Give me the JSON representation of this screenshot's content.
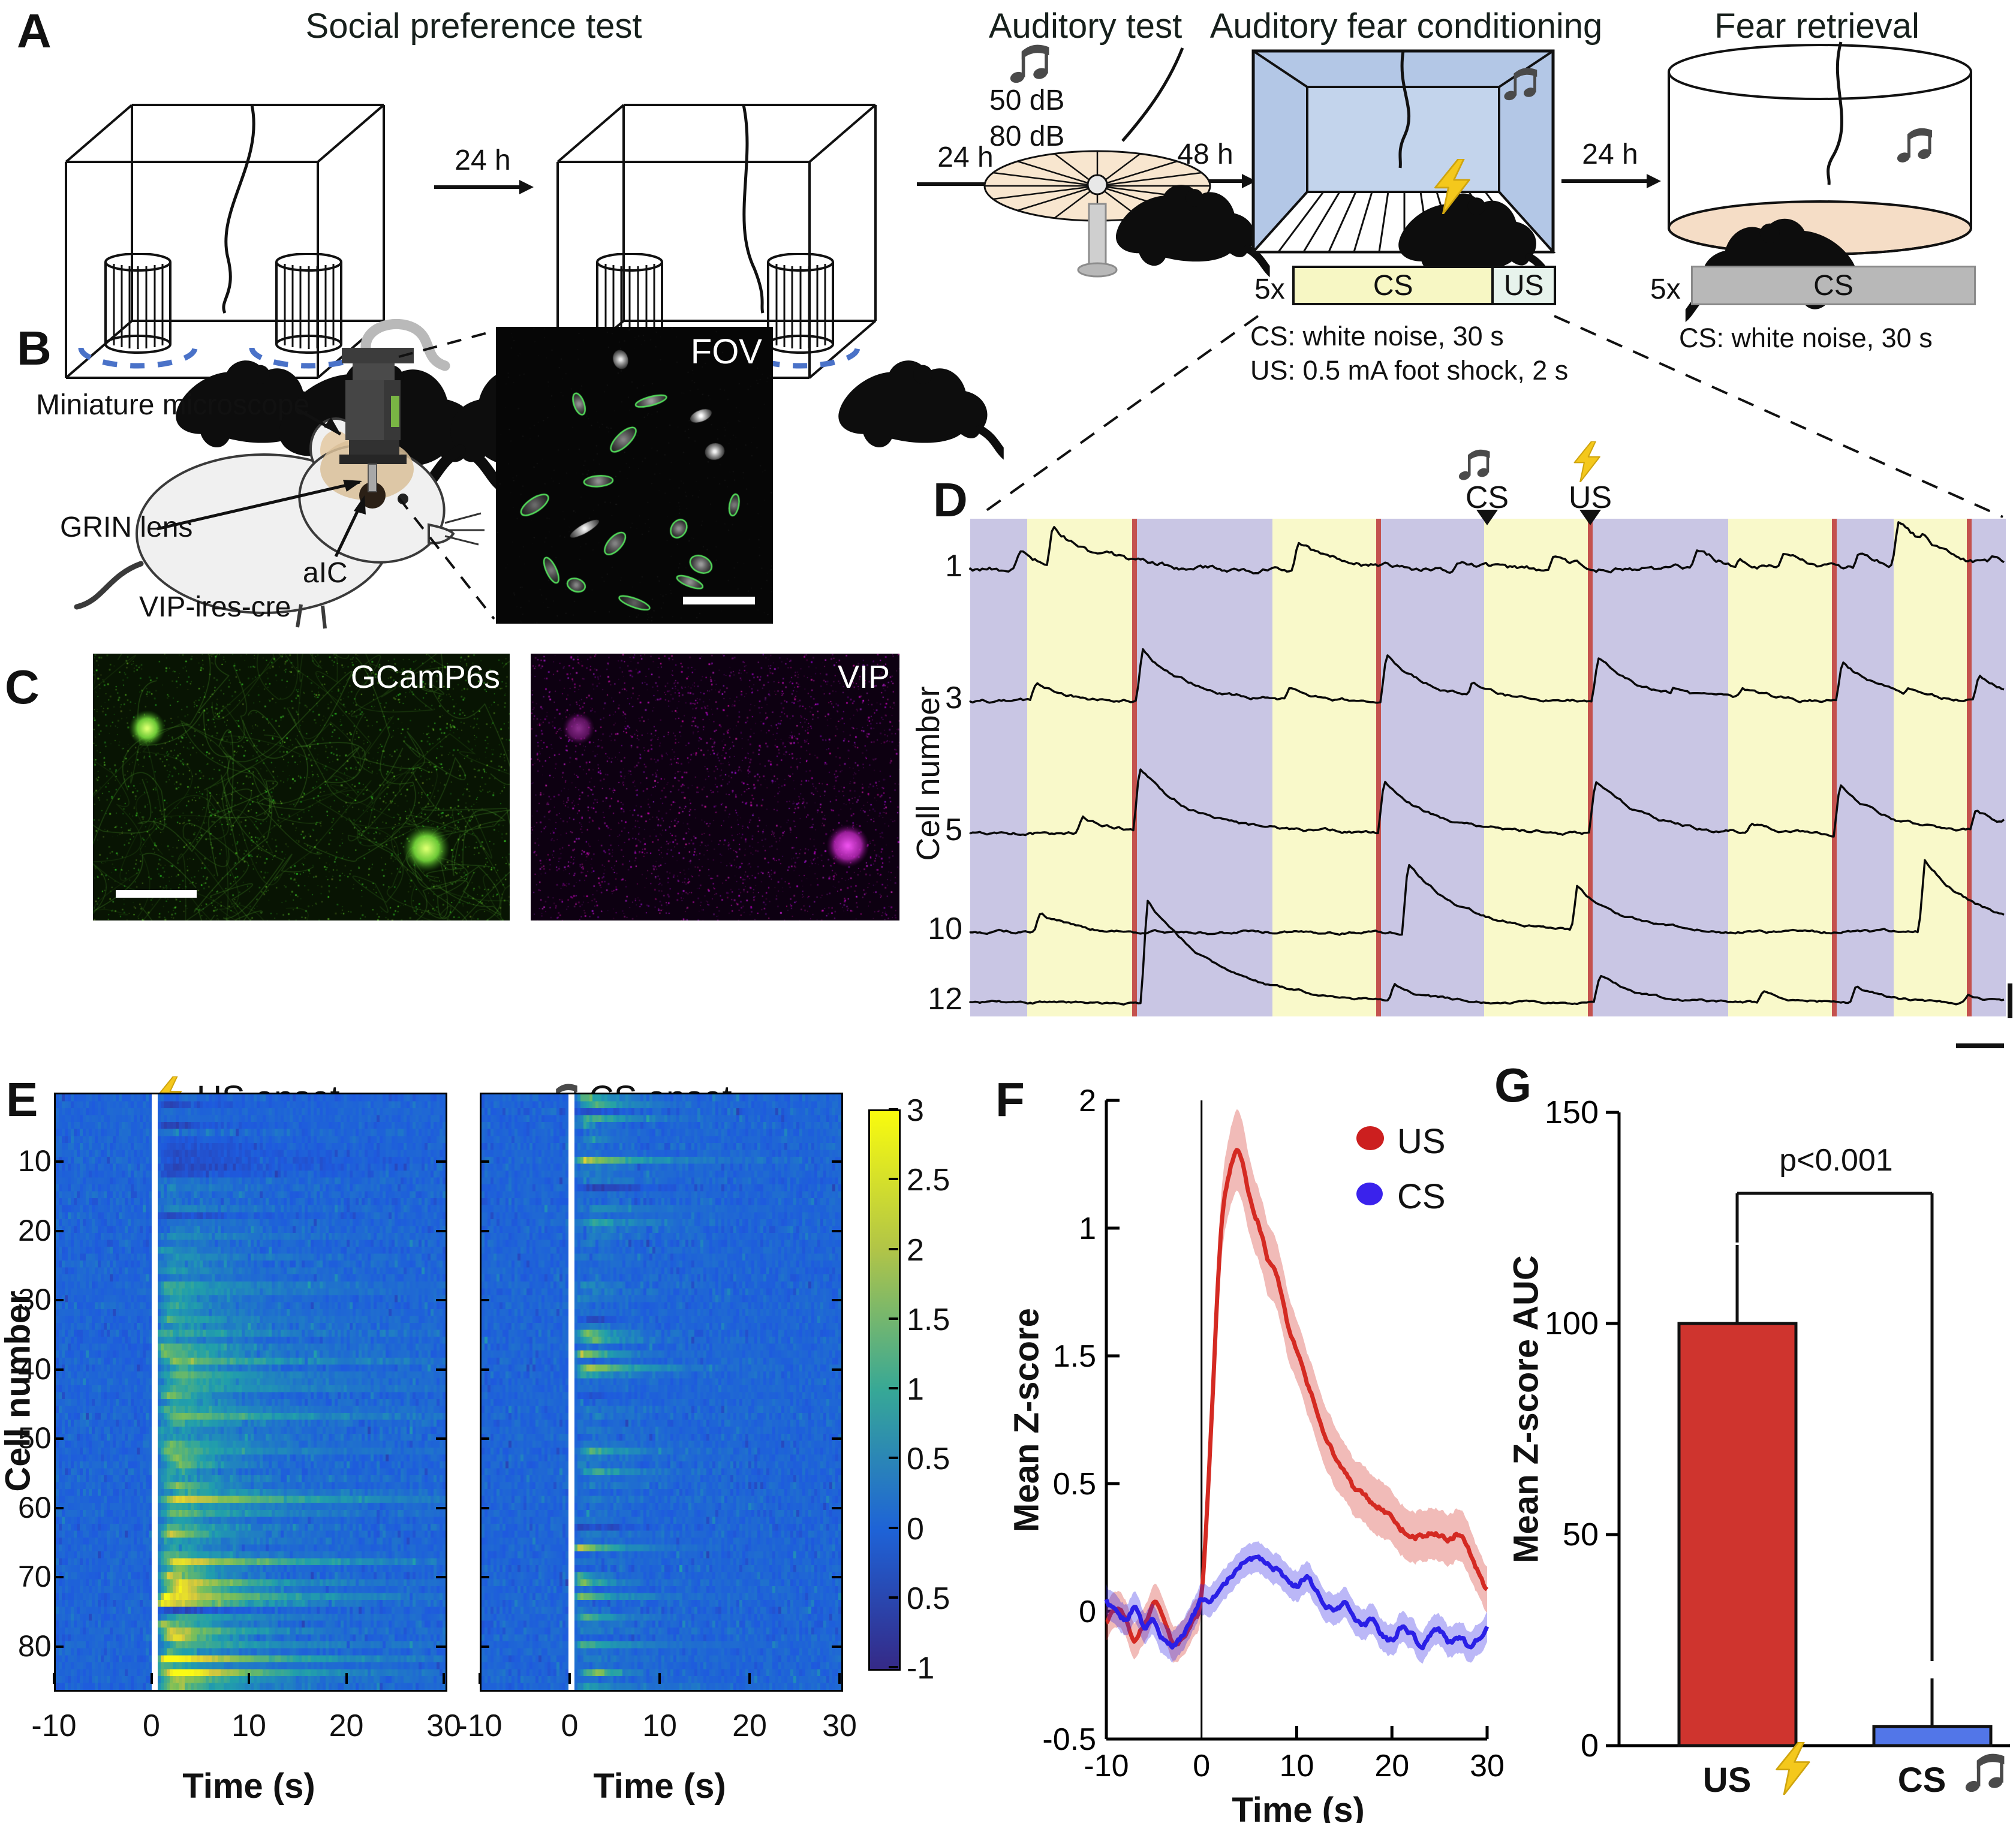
{
  "panels": {
    "a": "A",
    "b": "B",
    "c": "C",
    "d": "D",
    "e": "E",
    "f": "F",
    "g": "G"
  },
  "panel_a": {
    "title_social": "Social preference test",
    "title_auditory": "Auditory test",
    "title_conditioning": "Auditory fear conditioning",
    "title_retrieval": "Fear retrieval",
    "arrow_1": "24 h",
    "arrow_2": "24 h",
    "arrow_3": "48 h",
    "arrow_4": "24 h",
    "db_levels": [
      "50 dB",
      "80 dB"
    ],
    "conditioning_repeat": "5x",
    "conditioning_cs": "CS",
    "conditioning_us": "US",
    "conditioning_cs_desc": "CS: white noise, 30 s",
    "conditioning_us_desc": "US: 0.5 mA foot shock, 2 s",
    "retrieval_repeat": "5x",
    "retrieval_cs": "CS",
    "retrieval_cs_desc": "CS: white noise, 30 s"
  },
  "panel_b": {
    "label_microscope": "Miniature microscope",
    "label_grin": "GRIN lens",
    "label_aic": "aIC",
    "label_strain": "VIP-ires-cre",
    "fov": "FOV"
  },
  "panel_c": {
    "gcamp": "GCamP6s",
    "vip": "VIP"
  },
  "panel_d": {
    "ylabel": "Cell number",
    "cs": "CS",
    "us": "US",
    "cell_labels": [
      "1",
      "3",
      "5",
      "10",
      "12"
    ]
  },
  "panel_e": {
    "us_title": "US onset",
    "cs_title": "CS onset",
    "ylabel": "Cell number",
    "xlabel_left": "Time (s)",
    "xlabel_right": "Time (s)"
  },
  "panel_f": {
    "ylabel": "Mean Z-score",
    "xlabel": "Time (s)",
    "legend_us": "US",
    "legend_cs": "CS"
  },
  "panel_g": {
    "ylabel": "Mean Z-score AUC",
    "p_label": "p<0.001",
    "x_us": "US",
    "x_cs": "CS"
  },
  "colors": {
    "band_purple": "#c9c6e4",
    "band_yellow": "#f9f9ca",
    "red_line": "#c4524e",
    "us_red": "#d42a22",
    "cs_blue": "#2a1fe6",
    "bar_red": "#cf342e",
    "bar_blue": "#5276e8",
    "bolt_yellow": "#f4c81c",
    "note_gray": "#4a4a4a",
    "dashed_blue": "#4a72c8",
    "green_outline": "#54e05c"
  },
  "chart_data": [
    {
      "id": "d_traces",
      "type": "line",
      "ylabel": "Cell number",
      "cells": [
        {
          "label": "1",
          "baseline": 950,
          "noise": 6.5,
          "spikes": [
            [
              1700,
              30
            ],
            [
              1755,
              78
            ],
            [
              1830,
              20
            ],
            [
              2165,
              50
            ],
            [
              2430,
              15
            ],
            [
              2590,
              20
            ],
            [
              2830,
              32
            ],
            [
              2900,
              18
            ],
            [
              2975,
              25
            ],
            [
              3100,
              30
            ],
            [
              3165,
              80
            ],
            [
              3205,
              55
            ],
            [
              3320,
              18
            ]
          ]
        },
        {
          "label": "3",
          "baseline": 1170,
          "noise": 4,
          "spikes": [
            [
              1728,
              28
            ],
            [
              1905,
              85
            ],
            [
              2150,
              20
            ],
            [
              2312,
              78
            ],
            [
              2455,
              32
            ],
            [
              2665,
              72
            ],
            [
              2790,
              22
            ],
            [
              2905,
              18
            ],
            [
              3072,
              68
            ],
            [
              3180,
              25
            ],
            [
              3300,
              42
            ]
          ]
        },
        {
          "label": "5",
          "baseline": 1390,
          "noise": 4,
          "spikes": [
            [
              1805,
              32
            ],
            [
              1900,
              112
            ],
            [
              2308,
              88
            ],
            [
              2660,
              88
            ],
            [
              2920,
              15
            ],
            [
              3068,
              82
            ],
            [
              3295,
              42
            ],
            [
              3340,
              25
            ]
          ]
        },
        {
          "label": "10",
          "baseline": 1555,
          "noise": 3.5,
          "spikes": [
            [
              1735,
              32
            ],
            [
              2348,
              118
            ],
            [
              2630,
              78
            ],
            [
              3210,
              122
            ]
          ]
        },
        {
          "label": "12",
          "baseline": 1672,
          "noise": 3,
          "spikes": [
            [
              1913,
              172
            ],
            [
              2325,
              32
            ],
            [
              2668,
              46
            ],
            [
              2940,
              18
            ],
            [
              3095,
              28
            ],
            [
              3282,
              14
            ]
          ]
        }
      ],
      "red_lines": [
        1892,
        2299,
        2652,
        3059,
        3284
      ],
      "bands": [
        [
          1618,
          1713,
          "p"
        ],
        [
          1713,
          1888,
          "y"
        ],
        [
          1888,
          1896,
          "r"
        ],
        [
          1896,
          2122,
          "p"
        ],
        [
          2122,
          2295,
          "y"
        ],
        [
          2295,
          2303,
          "r"
        ],
        [
          2303,
          2475,
          "p"
        ],
        [
          2475,
          2648,
          "y"
        ],
        [
          2648,
          2656,
          "r"
        ],
        [
          2656,
          2882,
          "p"
        ],
        [
          2882,
          3055,
          "y"
        ],
        [
          3055,
          3063,
          "r"
        ],
        [
          3063,
          3158,
          "p"
        ],
        [
          3158,
          3280,
          "y"
        ],
        [
          3280,
          3288,
          "r"
        ],
        [
          3288,
          3345,
          "p"
        ]
      ],
      "cs_marker_x": 2480,
      "us_marker_x": 2652,
      "n_trials": "5"
    },
    {
      "id": "e_heatmaps",
      "type": "heatmap",
      "maps": [
        {
          "id": "us",
          "title": "US onset",
          "scale": 2.4
        },
        {
          "id": "cs",
          "title": "CS onset",
          "scale": 1.15
        }
      ],
      "x_range": [
        -10,
        30
      ],
      "x_ticks": [
        "-10",
        "0",
        "10",
        "20",
        "30"
      ],
      "y_ticks": [
        "10",
        "20",
        "30",
        "40",
        "50",
        "60",
        "70",
        "80"
      ],
      "n_cells": 86,
      "color_range": [
        -1,
        3
      ],
      "colorbar_ticks": [
        "3",
        "2.5",
        "2",
        "1.5",
        "1",
        "0.5",
        "0",
        "0.5",
        "-1"
      ],
      "xlabel": "Time (s)",
      "ylabel": "Cell number"
    },
    {
      "id": "f_line",
      "type": "line",
      "title": "",
      "xlabel": "Time (s)",
      "ylabel": "Mean Z-score",
      "x_ticks": [
        "-10",
        "0",
        "10",
        "20",
        "30"
      ],
      "y_tick_labels": [
        "2",
        "1",
        "1.5",
        "0.5",
        "0",
        "-0.5"
      ],
      "ylim": [
        -0.5,
        2
      ],
      "xlim": [
        -10,
        30
      ],
      "legend": [
        "US",
        "CS"
      ],
      "x": [
        -10,
        -9,
        -8,
        -7,
        -6,
        -5,
        -4,
        -3,
        -2,
        -1,
        0,
        1,
        2,
        3,
        4,
        5,
        6,
        7,
        8,
        9,
        10,
        11,
        12,
        13,
        14,
        15,
        16,
        17,
        18,
        19,
        20,
        21,
        22,
        23,
        24,
        25,
        26,
        27,
        28,
        29,
        30
      ],
      "series": [
        {
          "name": "US",
          "color": "#d42a22",
          "y": [
            -0.05,
            0.02,
            -0.02,
            -0.1,
            -0.04,
            0.03,
            -0.02,
            -0.12,
            -0.1,
            -0.04,
            0.05,
            0.7,
            1.45,
            1.72,
            1.78,
            1.62,
            1.52,
            1.38,
            1.3,
            1.12,
            1.02,
            0.9,
            0.8,
            0.68,
            0.6,
            0.55,
            0.48,
            0.45,
            0.42,
            0.4,
            0.38,
            0.33,
            0.31,
            0.3,
            0.31,
            0.3,
            0.27,
            0.3,
            0.24,
            0.16,
            0.08
          ],
          "band": [
            0.07,
            0.07,
            0.07,
            0.07,
            0.07,
            0.07,
            0.07,
            0.07,
            0.07,
            0.07,
            0.07,
            0.1,
            0.13,
            0.15,
            0.16,
            0.15,
            0.14,
            0.14,
            0.13,
            0.13,
            0.12,
            0.12,
            0.12,
            0.12,
            0.12,
            0.11,
            0.11,
            0.11,
            0.11,
            0.11,
            0.1,
            0.1,
            0.1,
            0.1,
            0.1,
            0.1,
            0.1,
            0.1,
            0.1,
            0.09,
            0.09
          ]
        },
        {
          "name": "CS",
          "color": "#2a1fe6",
          "y": [
            0.05,
            0.0,
            -0.03,
            0.02,
            -0.06,
            -0.03,
            -0.1,
            -0.13,
            -0.1,
            -0.03,
            0.04,
            0.06,
            0.1,
            0.14,
            0.19,
            0.22,
            0.2,
            0.18,
            0.16,
            0.12,
            0.1,
            0.13,
            0.08,
            0.03,
            0.01,
            0.03,
            -0.02,
            -0.06,
            -0.03,
            -0.09,
            -0.11,
            -0.06,
            -0.09,
            -0.13,
            -0.1,
            -0.08,
            -0.13,
            -0.1,
            -0.13,
            -0.1,
            -0.06
          ],
          "band": [
            0.06,
            0.06,
            0.06,
            0.06,
            0.06,
            0.06,
            0.06,
            0.06,
            0.06,
            0.06,
            0.06,
            0.06,
            0.06,
            0.06,
            0.06,
            0.06,
            0.06,
            0.06,
            0.06,
            0.06,
            0.06,
            0.06,
            0.06,
            0.06,
            0.06,
            0.06,
            0.06,
            0.06,
            0.06,
            0.06,
            0.06,
            0.06,
            0.06,
            0.06,
            0.06,
            0.06,
            0.06,
            0.06,
            0.06,
            0.06,
            0.06
          ]
        }
      ]
    },
    {
      "id": "g_bar",
      "type": "bar",
      "ylabel": "Mean Z-score AUC",
      "categories": [
        "US",
        "CS"
      ],
      "values": [
        100,
        4.5
      ],
      "errors_up": [
        25,
        15
      ],
      "y_ticks": [
        "150",
        "100",
        "50",
        "0"
      ],
      "ylim": [
        0,
        150
      ],
      "p_label": "p<0.001",
      "bar_colors": [
        "#cf342e",
        "#5276e8"
      ]
    }
  ]
}
